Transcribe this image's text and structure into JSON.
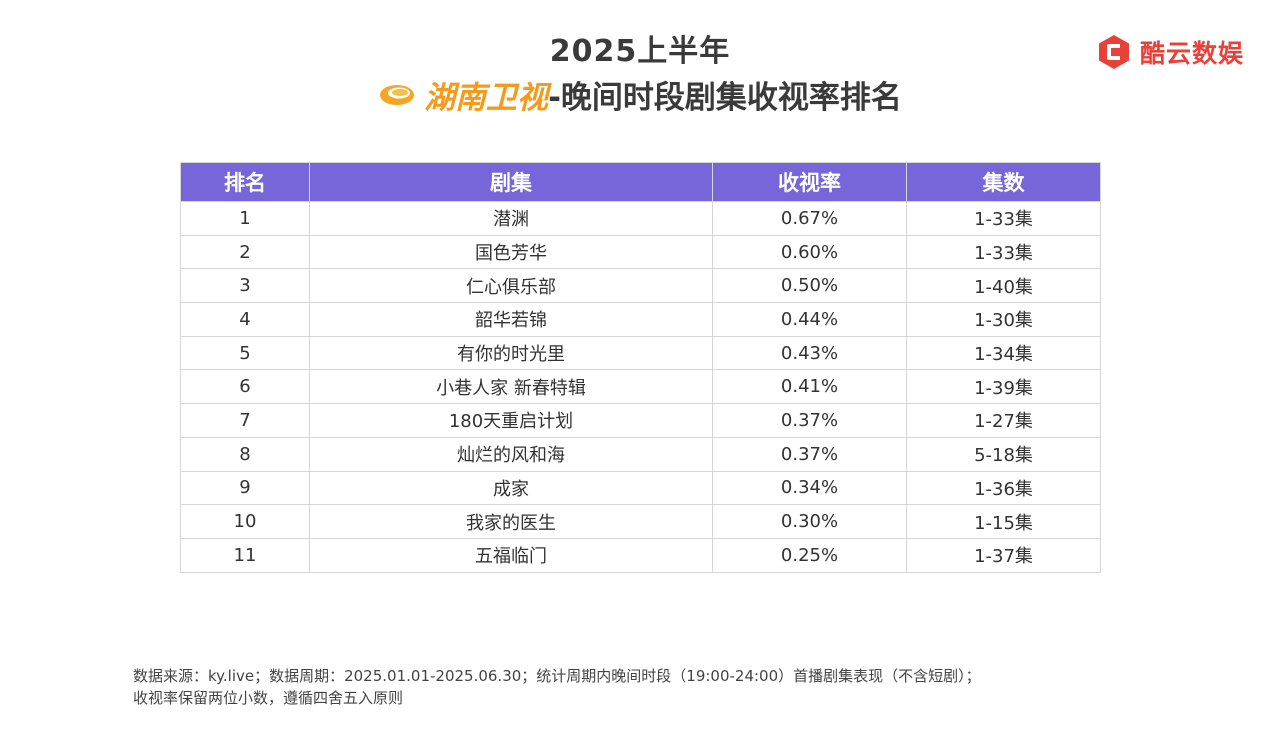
{
  "header": {
    "year": "2025上半年",
    "channel": "湖南卫视",
    "title_rest": "-晚间时段剧集收视率排名",
    "brand_name": "酷云数娱"
  },
  "colors": {
    "header_bg": "#7766d9",
    "channel": "#f59a1b",
    "brand": "#e8413a"
  },
  "table": {
    "columns": [
      "排名",
      "剧集",
      "收视率",
      "集数"
    ],
    "rows": [
      {
        "rank": "1",
        "drama": "潜渊",
        "rating": "0.67%",
        "episodes": "1-33集"
      },
      {
        "rank": "2",
        "drama": "国色芳华",
        "rating": "0.60%",
        "episodes": "1-33集"
      },
      {
        "rank": "3",
        "drama": "仁心俱乐部",
        "rating": "0.50%",
        "episodes": "1-40集"
      },
      {
        "rank": "4",
        "drama": "韶华若锦",
        "rating": "0.44%",
        "episodes": "1-30集"
      },
      {
        "rank": "5",
        "drama": "有你的时光里",
        "rating": "0.43%",
        "episodes": "1-34集"
      },
      {
        "rank": "6",
        "drama": "小巷人家 新春特辑",
        "rating": "0.41%",
        "episodes": "1-39集"
      },
      {
        "rank": "7",
        "drama": "180天重启计划",
        "rating": "0.37%",
        "episodes": "1-27集"
      },
      {
        "rank": "8",
        "drama": "灿烂的风和海",
        "rating": "0.37%",
        "episodes": "5-18集"
      },
      {
        "rank": "9",
        "drama": "成家",
        "rating": "0.34%",
        "episodes": "1-36集"
      },
      {
        "rank": "10",
        "drama": "我家的医生",
        "rating": "0.30%",
        "episodes": "1-15集"
      },
      {
        "rank": "11",
        "drama": "五福临门",
        "rating": "0.25%",
        "episodes": "1-37集"
      }
    ]
  },
  "footnote": {
    "line1": "数据来源：ky.live；数据周期：2025.01.01-2025.06.30；统计周期内晚间时段（19:00-24:00）首播剧集表现（不含短剧）；",
    "line2": "收视率保留两位小数，遵循四舍五入原则"
  }
}
